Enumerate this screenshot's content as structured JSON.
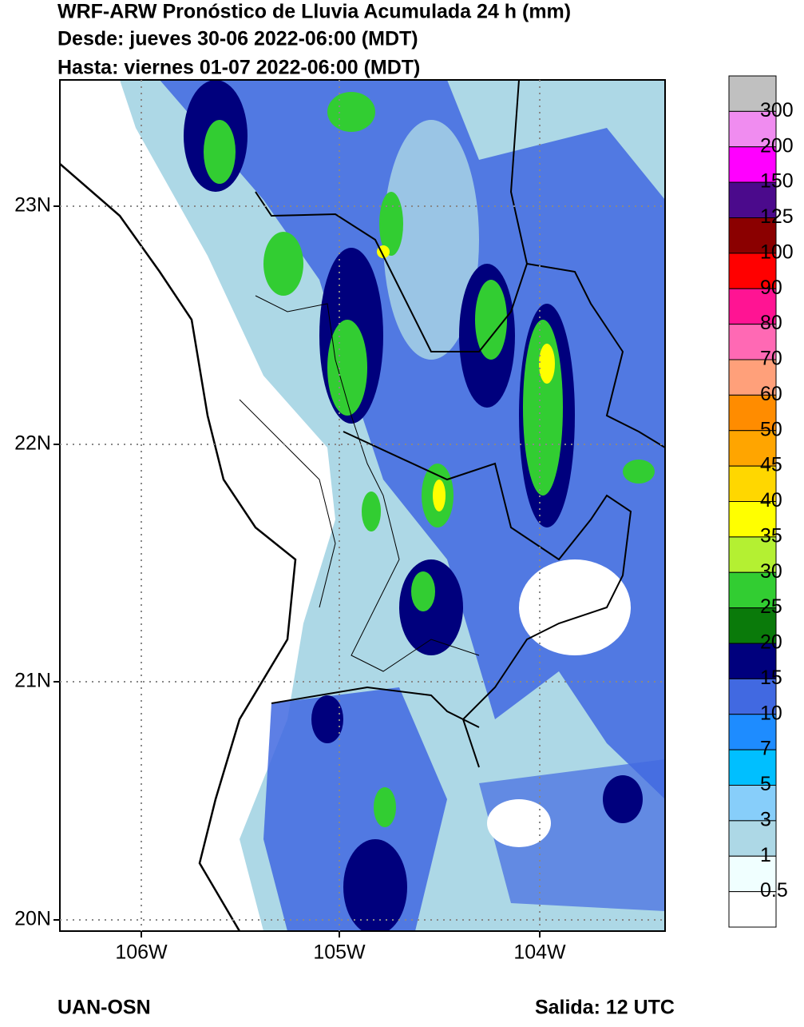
{
  "header": {
    "lines": [
      "WRF-ARW Pronóstico de Lluvia Acumulada 24 h (mm)",
      "Desde: jueves 30-06 2022-06:00 (MDT)",
      "Hasta: viernes 01-07 2022-06:00 (MDT)"
    ]
  },
  "map": {
    "lat_labels": [
      "23N",
      "22N",
      "21N",
      "20N"
    ],
    "lon_labels": [
      "106W",
      "105W",
      "104W"
    ]
  },
  "legend": {
    "levels": [
      "300",
      "200",
      "150",
      "125",
      "100",
      "90",
      "80",
      "70",
      "60",
      "50",
      "45",
      "40",
      "35",
      "30",
      "25",
      "20",
      "15",
      "10",
      "7",
      "5",
      "3",
      "1",
      "0.5"
    ],
    "colors": [
      "#c0c0c0",
      "#f08cf0",
      "#ff00ff",
      "#4b0a8c",
      "#8b0000",
      "#ff0000",
      "#ff1493",
      "#ff69b4",
      "#ffa07a",
      "#ff8c00",
      "#ffa500",
      "#ffd700",
      "#ffff00",
      "#b4f032",
      "#32cd32",
      "#0a7a0a",
      "#00007d",
      "#4169e1",
      "#1e8cff",
      "#00bfff",
      "#87cefa",
      "#add8e6",
      "#f0ffff",
      "#ffffff"
    ]
  },
  "footer": {
    "left": "UAN-OSN",
    "right": "Salida: 12 UTC"
  }
}
